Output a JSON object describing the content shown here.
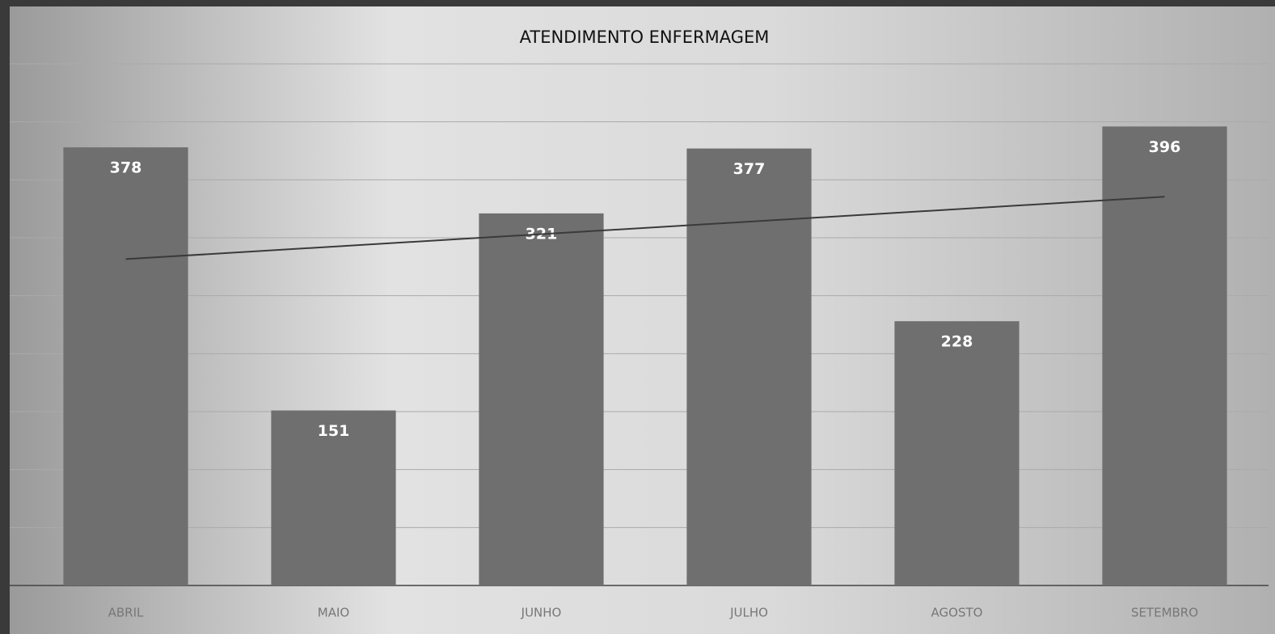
{
  "chart_data": {
    "type": "bar",
    "title": "ATENDIMENTO ENFERMAGEM",
    "categories": [
      "ABRIL",
      "MAIO",
      "JUNHO",
      "JULHO",
      "AGOSTO",
      "SETEMBRO"
    ],
    "values": [
      378,
      151,
      321,
      377,
      228,
      396
    ],
    "color": "#6f6f6f",
    "ylim": [
      0,
      450
    ],
    "yticks": [
      0,
      50,
      100,
      150,
      200,
      250,
      300,
      350,
      400,
      450
    ],
    "grid": true,
    "trendline": true,
    "trendline_color": "#3a3a3a"
  }
}
